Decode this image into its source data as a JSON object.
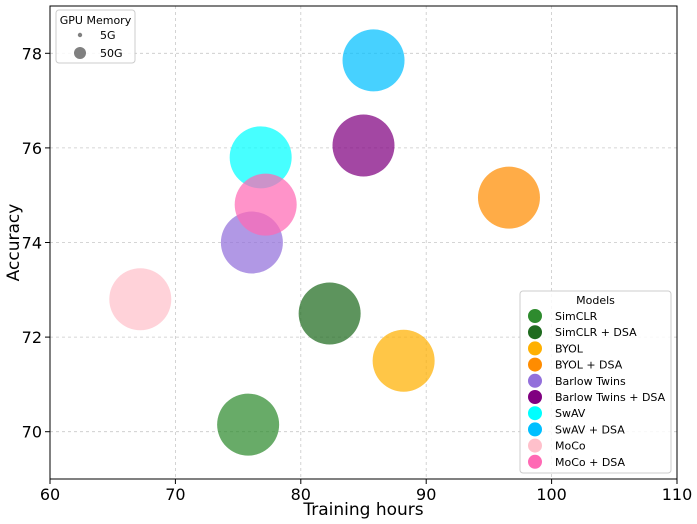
{
  "chart_data": {
    "type": "scatter",
    "xlabel": "Training hours",
    "ylabel": "Accuracy",
    "xlim": [
      60,
      110
    ],
    "ylim": [
      69,
      79
    ],
    "xticks": [
      60,
      70,
      80,
      90,
      100,
      110
    ],
    "yticks": [
      70,
      72,
      74,
      76,
      78
    ],
    "grid": true,
    "series": [
      {
        "name": "SimCLR",
        "x": 75.8,
        "y": 70.15,
        "gpu_memory_gb": 50,
        "color": "#2e8b2e"
      },
      {
        "name": "SimCLR + DSA",
        "x": 82.3,
        "y": 72.5,
        "gpu_memory_gb": 50,
        "color": "#1f6b1f"
      },
      {
        "name": "BYOL",
        "x": 88.2,
        "y": 71.5,
        "gpu_memory_gb": 50,
        "color": "#ffb000"
      },
      {
        "name": "BYOL + DSA",
        "x": 96.6,
        "y": 74.95,
        "gpu_memory_gb": 50,
        "color": "#ff8c00"
      },
      {
        "name": "Barlow Twins",
        "x": 76.1,
        "y": 74.0,
        "gpu_memory_gb": 50,
        "color": "#9370db"
      },
      {
        "name": "Barlow Twins + DSA",
        "x": 85.0,
        "y": 76.05,
        "gpu_memory_gb": 50,
        "color": "#800080"
      },
      {
        "name": "SwAV",
        "x": 76.8,
        "y": 75.8,
        "gpu_memory_gb": 50,
        "color": "#00ffff"
      },
      {
        "name": "SwAV + DSA",
        "x": 85.8,
        "y": 77.85,
        "gpu_memory_gb": 50,
        "color": "#00bfff"
      },
      {
        "name": "MoCo",
        "x": 67.2,
        "y": 72.8,
        "gpu_memory_gb": 50,
        "color": "#ffc0cb"
      },
      {
        "name": "MoCo + DSA",
        "x": 77.2,
        "y": 74.8,
        "gpu_memory_gb": 50,
        "color": "#ff69b4"
      }
    ],
    "size_legend": {
      "title": "GPU Memory",
      "placement": "top-left",
      "entries": [
        {
          "label": "5G",
          "gpu_memory_gb": 5
        },
        {
          "label": "50G",
          "gpu_memory_gb": 50
        }
      ]
    },
    "model_legend": {
      "title": "Models",
      "placement": "bottom-right"
    }
  }
}
